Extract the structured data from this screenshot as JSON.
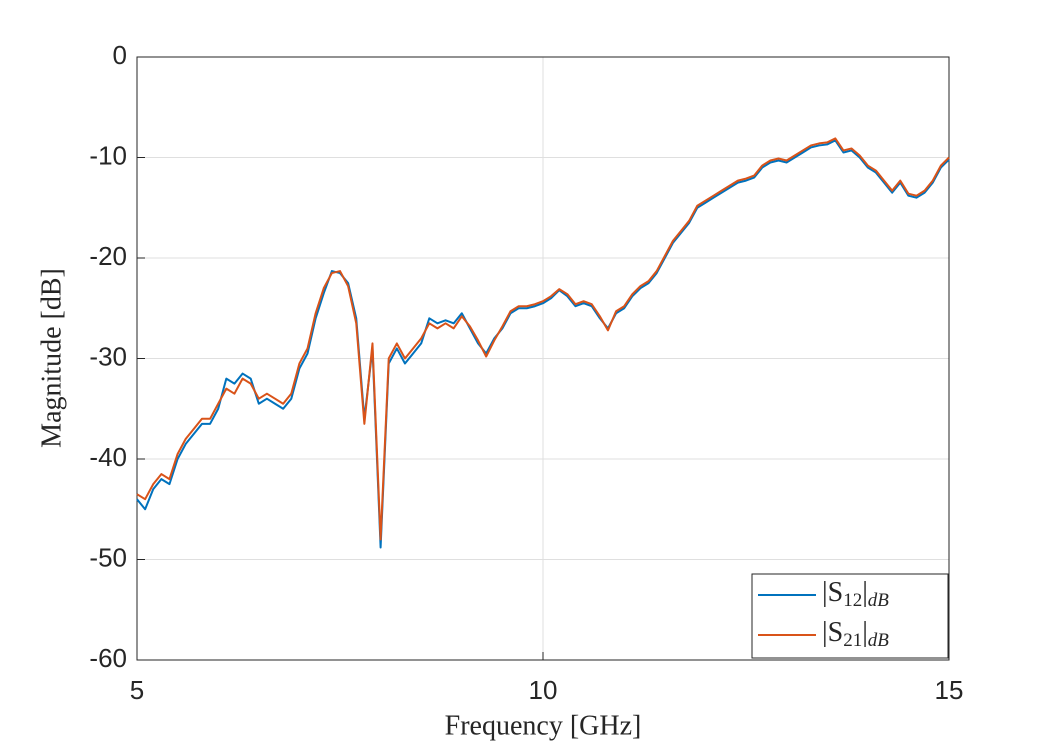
{
  "chart_data": {
    "type": "line",
    "xlabel": "Frequency [GHz]",
    "ylabel": "Magnitude [dB]",
    "x": [
      5.0,
      5.1,
      5.2,
      5.3,
      5.4,
      5.5,
      5.6,
      5.7,
      5.8,
      5.9,
      6.0,
      6.1,
      6.2,
      6.3,
      6.4,
      6.5,
      6.6,
      6.7,
      6.8,
      6.9,
      7.0,
      7.1,
      7.2,
      7.3,
      7.4,
      7.5,
      7.6,
      7.7,
      7.8,
      7.9,
      8.0,
      8.1,
      8.2,
      8.3,
      8.4,
      8.5,
      8.6,
      8.7,
      8.8,
      8.9,
      9.0,
      9.1,
      9.2,
      9.3,
      9.4,
      9.5,
      9.6,
      9.7,
      9.8,
      9.9,
      10.0,
      10.1,
      10.2,
      10.3,
      10.4,
      10.5,
      10.6,
      10.7,
      10.8,
      10.9,
      11.0,
      11.1,
      11.2,
      11.3,
      11.4,
      11.5,
      11.6,
      11.7,
      11.8,
      11.9,
      12.0,
      12.1,
      12.2,
      12.3,
      12.4,
      12.5,
      12.6,
      12.7,
      12.8,
      12.9,
      13.0,
      13.1,
      13.2,
      13.3,
      13.4,
      13.5,
      13.6,
      13.7,
      13.8,
      13.9,
      14.0,
      14.1,
      14.2,
      14.3,
      14.4,
      14.5,
      14.6,
      14.7,
      14.8,
      14.9,
      15.0
    ],
    "series": [
      {
        "name": "|S_{12}|_{dB}",
        "color": "#0072bd",
        "values": [
          -44,
          -45,
          -43,
          -42,
          -42.5,
          -40,
          -38.5,
          -37.5,
          -36.5,
          -36.5,
          -35,
          -32,
          -32.5,
          -31.5,
          -32,
          -34.5,
          -34,
          -34.5,
          -35,
          -34,
          -31,
          -29.5,
          -26,
          -23.5,
          -21.3,
          -21.5,
          -22.5,
          -26,
          -36,
          -29,
          -48.8,
          -30.5,
          -29,
          -30.5,
          -29.5,
          -28.5,
          -26,
          -26.5,
          -26.2,
          -26.5,
          -25.5,
          -27,
          -28.5,
          -29.5,
          -28,
          -27,
          -25.5,
          -25,
          -25,
          -24.8,
          -24.5,
          -24,
          -23.2,
          -23.8,
          -24.8,
          -24.5,
          -24.8,
          -26,
          -27,
          -25.5,
          -25,
          -23.8,
          -23,
          -22.5,
          -21.5,
          -20,
          -18.5,
          -17.5,
          -16.5,
          -15,
          -14.5,
          -14,
          -13.5,
          -13,
          -12.5,
          -12.3,
          -12,
          -11,
          -10.5,
          -10.3,
          -10.5,
          -10,
          -9.5,
          -9,
          -8.8,
          -8.7,
          -8.3,
          -9.5,
          -9.3,
          -10,
          -11,
          -11.5,
          -12.5,
          -13.5,
          -12.5,
          -13.8,
          -14,
          -13.5,
          -12.5,
          -11,
          -10.2
        ]
      },
      {
        "name": "|S_{21}|_{dB}",
        "color": "#d95319",
        "values": [
          -43.5,
          -44,
          -42.5,
          -41.5,
          -42,
          -39.5,
          -38,
          -37,
          -36,
          -36,
          -34.5,
          -33,
          -33.5,
          -32,
          -32.5,
          -34,
          -33.5,
          -34,
          -34.5,
          -33.5,
          -30.5,
          -29,
          -25.5,
          -23,
          -21.5,
          -21.3,
          -22.8,
          -26.5,
          -36.5,
          -28.5,
          -48,
          -30,
          -28.5,
          -30,
          -29,
          -28,
          -26.5,
          -27,
          -26.5,
          -27,
          -25.8,
          -26.8,
          -28.2,
          -29.8,
          -28.2,
          -26.8,
          -25.3,
          -24.8,
          -24.8,
          -24.6,
          -24.3,
          -23.8,
          -23.1,
          -23.6,
          -24.6,
          -24.3,
          -24.6,
          -25.8,
          -27.2,
          -25.3,
          -24.8,
          -23.6,
          -22.8,
          -22.3,
          -21.3,
          -19.8,
          -18.3,
          -17.3,
          -16.3,
          -14.8,
          -14.3,
          -13.8,
          -13.3,
          -12.8,
          -12.3,
          -12.1,
          -11.8,
          -10.8,
          -10.3,
          -10.1,
          -10.3,
          -9.8,
          -9.3,
          -8.8,
          -8.6,
          -8.5,
          -8.1,
          -9.3,
          -9.1,
          -9.8,
          -10.8,
          -11.3,
          -12.3,
          -13.3,
          -12.3,
          -13.6,
          -13.8,
          -13.3,
          -12.3,
          -10.8,
          -10
        ]
      }
    ],
    "xlim": [
      5,
      15
    ],
    "xticks": [
      5,
      10,
      15
    ],
    "ylim": [
      -60,
      0
    ],
    "yticks": [
      -60,
      -50,
      -40,
      -30,
      -20,
      -10,
      0
    ],
    "grid": true,
    "legend": "lower-right"
  }
}
